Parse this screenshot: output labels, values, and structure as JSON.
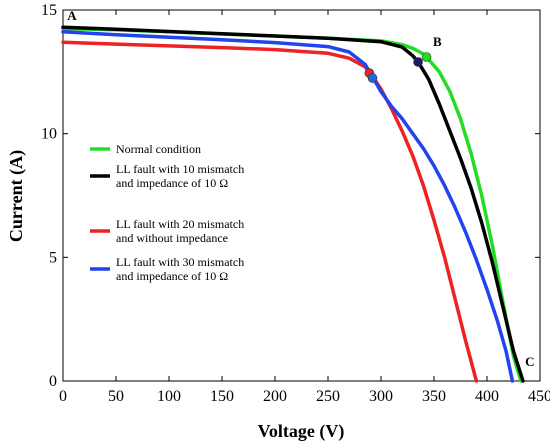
{
  "chart_data": {
    "type": "line",
    "xlabel": "Voltage (V)",
    "ylabel": "Current (A)",
    "xlim": [
      0,
      450
    ],
    "ylim": [
      0,
      15
    ],
    "xticks": [
      0,
      50,
      100,
      150,
      200,
      250,
      300,
      350,
      400,
      450
    ],
    "yticks": [
      0,
      5,
      10,
      15
    ],
    "grid": false,
    "legend_position": "left",
    "series": [
      {
        "name": "Normal condition",
        "color": "#22dd22",
        "x": [
          0,
          50,
          100,
          150,
          200,
          250,
          300,
          320,
          330,
          340,
          345,
          355,
          365,
          375,
          385,
          395,
          405,
          415,
          425,
          432
        ],
        "y": [
          14.25,
          14.2,
          14.12,
          14.03,
          13.95,
          13.86,
          13.75,
          13.6,
          13.45,
          13.22,
          13.0,
          12.5,
          11.7,
          10.6,
          9.2,
          7.5,
          5.5,
          3.2,
          1.0,
          0
        ]
      },
      {
        "name": "LL fault with 10 mismatch and impedance of 10 Ω",
        "color": "#000000",
        "x": [
          0,
          50,
          100,
          150,
          200,
          250,
          300,
          320,
          330,
          335,
          345,
          355,
          365,
          375,
          385,
          395,
          405,
          415,
          425,
          434
        ],
        "y": [
          14.3,
          14.22,
          14.13,
          14.04,
          13.95,
          13.86,
          13.72,
          13.5,
          13.15,
          12.9,
          12.2,
          11.2,
          10.1,
          9.0,
          7.8,
          6.4,
          4.8,
          3.0,
          1.2,
          0
        ]
      },
      {
        "name": "LL fault with 20 mismatch and without impedance",
        "color": "#ee2222",
        "x": [
          0,
          50,
          100,
          150,
          200,
          250,
          270,
          285,
          290,
          300,
          310,
          320,
          330,
          340,
          350,
          360,
          370,
          380,
          390
        ],
        "y": [
          13.7,
          13.62,
          13.55,
          13.48,
          13.4,
          13.25,
          13.05,
          12.7,
          12.45,
          11.8,
          11.0,
          10.1,
          9.1,
          7.9,
          6.5,
          5.0,
          3.3,
          1.6,
          0
        ]
      },
      {
        "name": "LL fault with 30 mismatch and impedance of 10 Ω",
        "color": "#2244ee",
        "x": [
          0,
          50,
          100,
          150,
          200,
          250,
          270,
          285,
          292,
          300,
          310,
          320,
          330,
          340,
          350,
          360,
          370,
          380,
          390,
          400,
          410,
          418,
          424
        ],
        "y": [
          14.12,
          14.0,
          13.9,
          13.8,
          13.68,
          13.52,
          13.3,
          12.8,
          12.3,
          11.7,
          11.1,
          10.6,
          10.0,
          9.4,
          8.7,
          7.9,
          7.0,
          6.0,
          4.9,
          3.7,
          2.4,
          1.2,
          0
        ]
      }
    ],
    "markers": [
      {
        "x": 343,
        "y": 13.1,
        "color": "#22dd22"
      },
      {
        "x": 335,
        "y": 12.9,
        "color": "#1a1a66"
      },
      {
        "x": 289,
        "y": 12.45,
        "color": "#ee2222"
      },
      {
        "x": 292,
        "y": 12.25,
        "color": "#2266dd"
      }
    ],
    "annotations": [
      {
        "text": "A",
        "x": 4,
        "y": 14.6
      },
      {
        "text": "B",
        "x": 349,
        "y": 13.55
      },
      {
        "text": "C",
        "x": 436,
        "y": 0.6
      }
    ],
    "legend": [
      {
        "lines": [
          "Normal condition"
        ],
        "color": "#22dd22"
      },
      {
        "lines": [
          "LL fault with 10 mismatch",
          "and impedance of 10 Ω"
        ],
        "color": "#000000"
      },
      {
        "lines": [
          "LL fault with 20 mismatch",
          "and without impedance"
        ],
        "color": "#ee2222"
      },
      {
        "lines": [
          "LL fault with 30 mismatch",
          "and impedance of 10 Ω"
        ],
        "color": "#2244ee"
      }
    ]
  }
}
